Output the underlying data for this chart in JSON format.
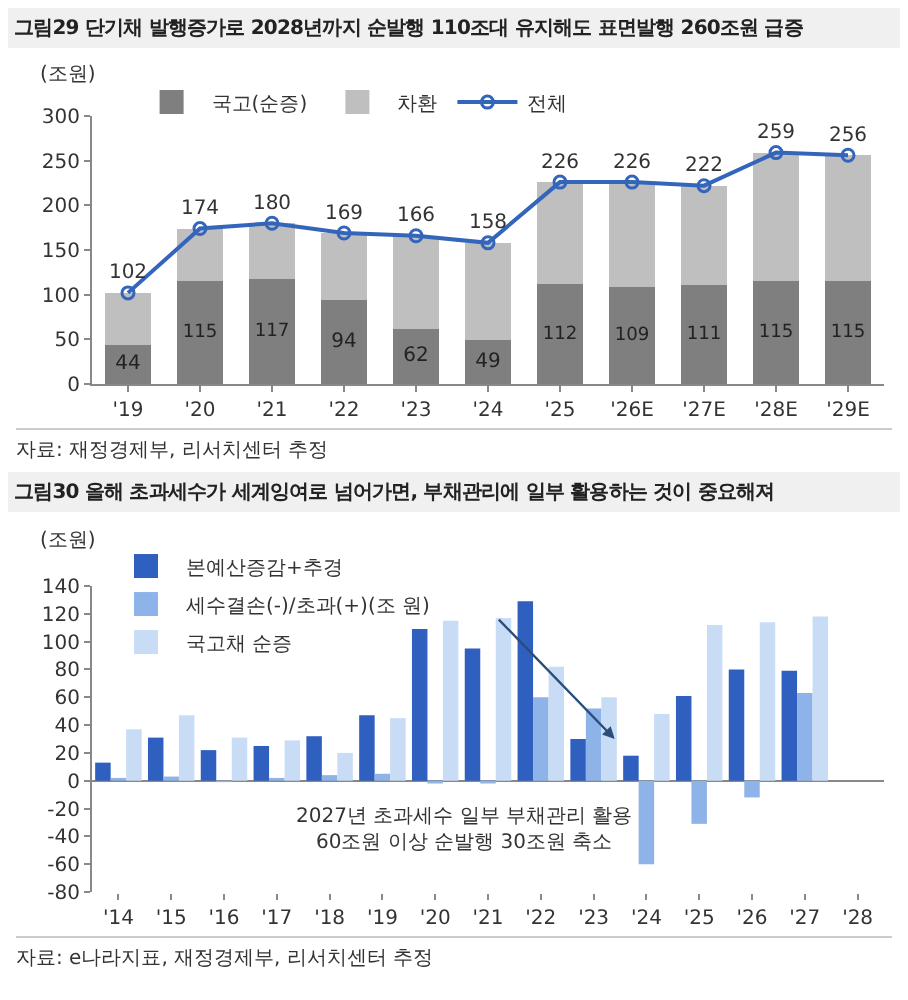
{
  "chart_data": [
    {
      "type": "bar",
      "title": "그림29  단기채 발행증가로 2028년까지 순발행 110조대 유지해도 표면발행 260조원 급증",
      "ylabel": "(조원)",
      "categories": [
        "'19",
        "'20",
        "'21",
        "'22",
        "'23",
        "'24",
        "'25",
        "'26E",
        "'27E",
        "'28E",
        "'29E"
      ],
      "stacked": true,
      "legend": "top",
      "marker": "circle",
      "ylim": [
        0,
        300
      ],
      "yticks": [
        0,
        50,
        100,
        150,
        200,
        250,
        300
      ],
      "series": [
        {
          "name": "국고(순증)",
          "color": "#7f7f7f",
          "values": [
            44,
            115,
            117,
            94,
            62,
            49,
            112,
            109,
            111,
            115,
            115
          ],
          "value_labels": [
            "44",
            "115",
            "117",
            "94",
            "62",
            "49",
            "112",
            "109",
            "111",
            "115",
            "115"
          ]
        },
        {
          "name": "차환",
          "color": "#bfbfbf",
          "values": [
            58,
            59,
            63,
            75,
            104,
            109,
            114,
            117,
            111,
            144,
            141
          ]
        },
        {
          "name": "전체",
          "type": "line",
          "color": "#3366bb",
          "values": [
            102,
            174,
            180,
            169,
            166,
            158,
            226,
            226,
            222,
            259,
            256
          ],
          "value_labels": [
            "102",
            "174",
            "180",
            "169",
            "166",
            "158",
            "226",
            "226",
            "222",
            "259",
            "256"
          ]
        }
      ],
      "annotations": [
        "자료: 재정경제부, 리서치센터 추정"
      ]
    },
    {
      "type": "bar",
      "title": "그림30  올해 초과세수가 세계잉여로 넘어가면, 부채관리에 일부 활용하는 것이 중요해져",
      "ylabel": "(조원)",
      "categories": [
        "'14",
        "'15",
        "'16",
        "'17",
        "'18",
        "'19",
        "'20",
        "'21",
        "'22",
        "'23",
        "'24",
        "'25",
        "'26",
        "'27",
        "'28"
      ],
      "legend": "top",
      "ylim": [
        -80,
        140
      ],
      "yticks": [
        -80,
        -60,
        -40,
        -20,
        0,
        20,
        40,
        60,
        80,
        100,
        120,
        140
      ],
      "series": [
        {
          "name": "본예산증감+추경",
          "color": "#2f5fbf",
          "values": [
            13,
            31,
            22,
            25,
            32,
            47,
            109,
            95,
            129,
            30,
            18,
            61,
            80,
            79,
            null
          ]
        },
        {
          "name": "세수결손(-)/초과(+)(조 원)",
          "color": "#8db3e8",
          "values": [
            2,
            3,
            -1,
            2,
            4,
            5,
            -2,
            -2,
            60,
            52,
            -60,
            -31,
            -12,
            63,
            null
          ]
        },
        {
          "name": "국고채 순증",
          "color": "#c9dcf5",
          "values": [
            37,
            47,
            31,
            29,
            20,
            45,
            115,
            117,
            82,
            60,
            48,
            112,
            114,
            118,
            null
          ]
        }
      ],
      "annotations": [
        "2027년 초과세수 일부 부채관리 활용\n60조원 이상 순발행 30조원 축소",
        "자료: e나라지표, 재정경제부, 리서치센터 추정"
      ]
    }
  ]
}
